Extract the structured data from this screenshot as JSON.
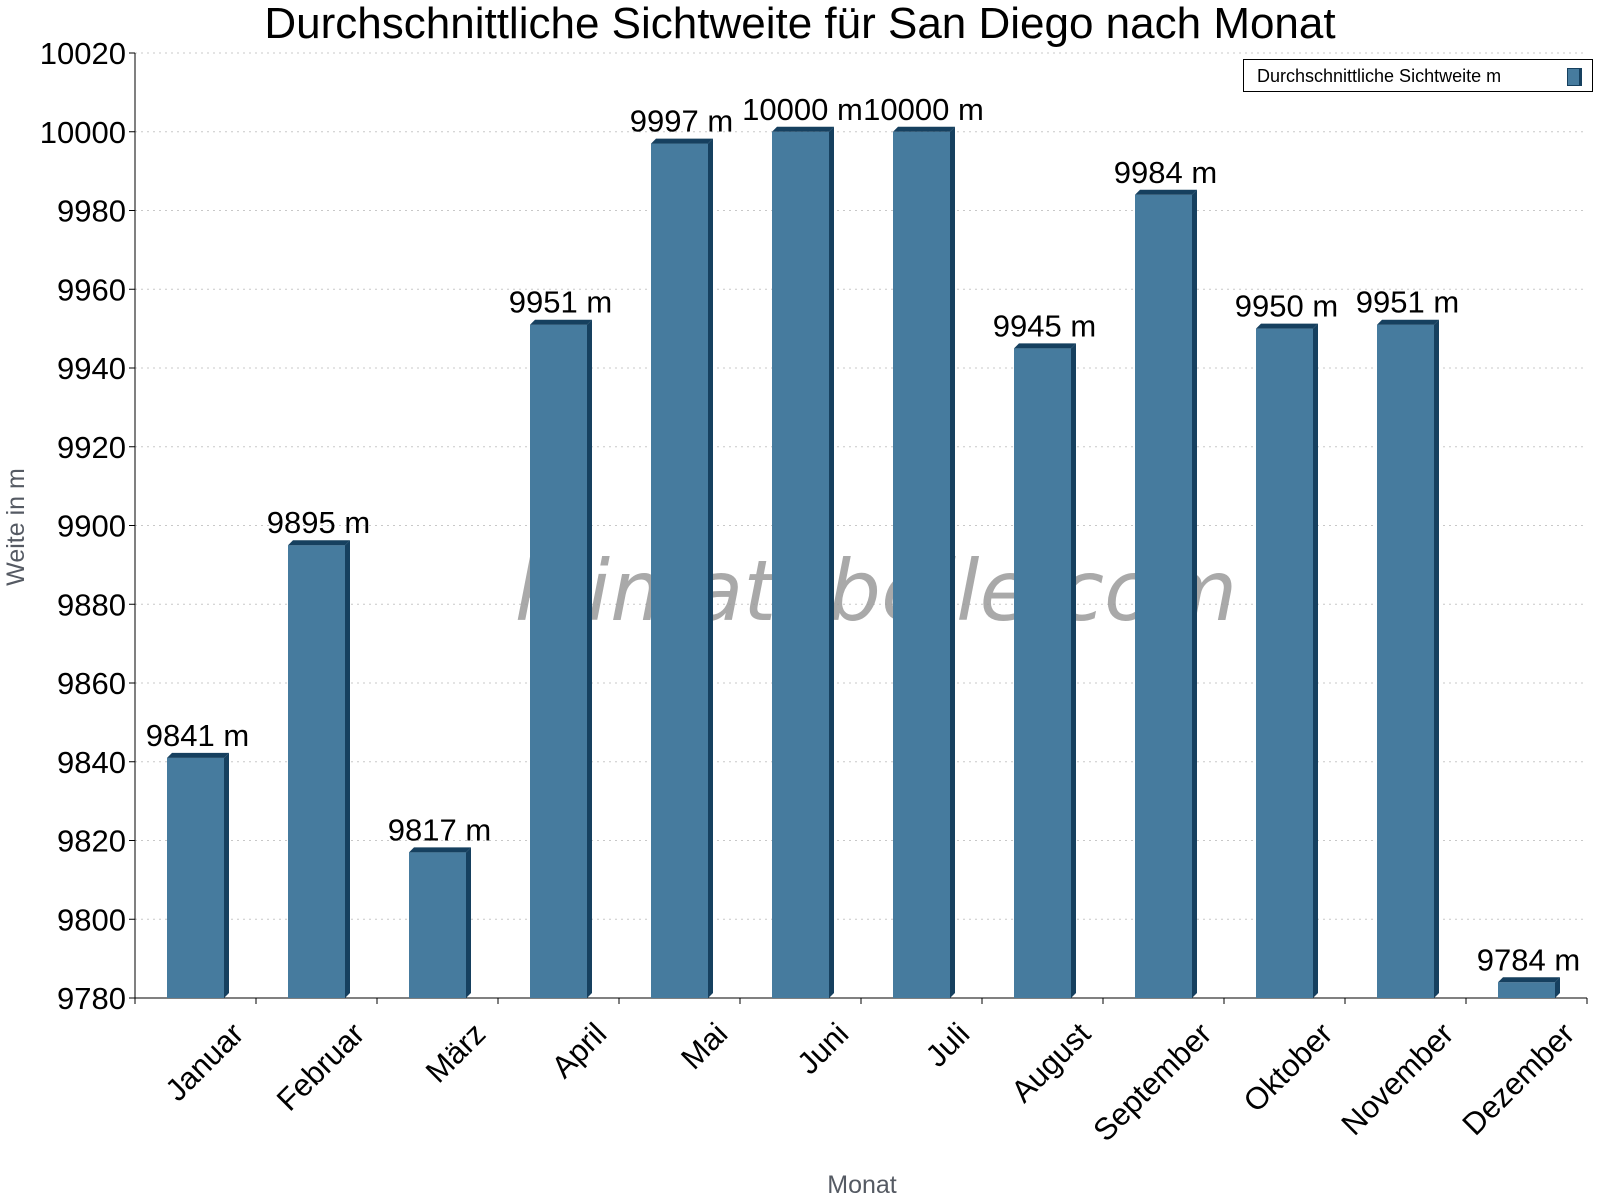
{
  "chart_data": {
    "type": "bar",
    "title": "Durchschnittliche Sichtweite für San Diego nach Monat",
    "xlabel": "Monat",
    "ylabel": "Weite in m",
    "categories": [
      "Januar",
      "Februar",
      "März",
      "April",
      "Mai",
      "Juni",
      "Juli",
      "August",
      "September",
      "Oktober",
      "November",
      "Dezember"
    ],
    "series": [
      {
        "name": "Durchschnittliche Sichtweite m",
        "values": [
          9841,
          9895,
          9817,
          9951,
          9997,
          10000,
          10000,
          9945,
          9984,
          9950,
          9951,
          9784
        ],
        "labels": [
          "9841 m",
          "9895 m",
          "9817 m",
          "9951 m",
          "9997 m",
          "10000 m",
          "10000 m",
          "9945 m",
          "9984 m",
          "9950 m",
          "9951 m",
          "9784 m"
        ]
      }
    ],
    "ylim": [
      9780,
      10020
    ],
    "yticks": [
      "9780",
      "9800",
      "9820",
      "9840",
      "9860",
      "9880",
      "9900",
      "9920",
      "9940",
      "9960",
      "9980",
      "10000",
      "10020"
    ],
    "grid": true,
    "legend_position": "top-right",
    "watermark": "klimatabelle.com",
    "colors": {
      "bar": "#467b9e",
      "bar_side": "#16405f"
    }
  }
}
